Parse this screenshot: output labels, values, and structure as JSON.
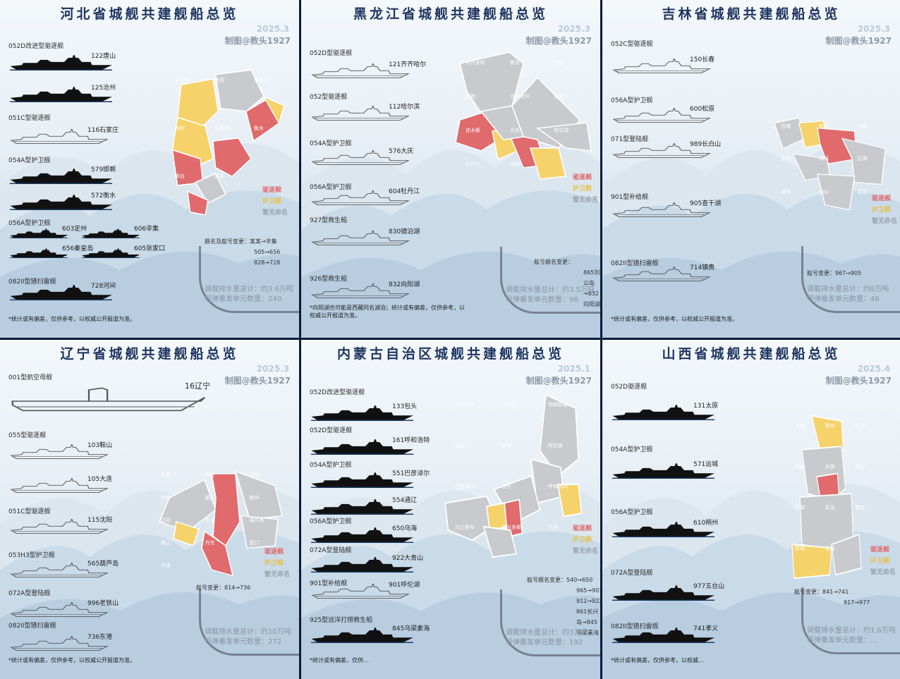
{
  "panels": [
    {
      "title": "河北省城舰共建舰船总览",
      "date": "2025.3",
      "credit": "制图@教头1927",
      "classes": [
        {
          "label": "052D改进型驱逐舰",
          "ships": [
            "122唐山",
            "125沧州"
          ],
          "style": "dark"
        },
        {
          "label": "051C型驱逐舰",
          "ships": [
            "116石家庄"
          ],
          "style": "line"
        },
        {
          "label": "054A型护卫舰",
          "ships": [
            "579邯郸",
            "572衡水"
          ],
          "style": "dark"
        },
        {
          "label": "056A型护卫舰",
          "ships": [
            "603定州",
            "606辛集",
            "656秦皇岛",
            "605张家口"
          ],
          "style": "dark"
        },
        {
          "label": "082II型猎扫雷舰",
          "ships": [
            "728河间"
          ],
          "style": "dark"
        }
      ],
      "map_labels": [
        "张家口",
        "承德",
        "秦皇岛",
        "保定",
        "石家庄",
        "衡水",
        "邢台",
        "邯郸"
      ],
      "legend": [
        "驱逐舰",
        "护卫舰",
        "暂无命名"
      ],
      "notes": [
        "舰名及舷号变更：某某→辛集",
        "505→656",
        "828→728"
      ],
      "totals": [
        "调载排水量总计：约3.6万吨",
        "导弹垂发单元数量：240"
      ],
      "disclaimer": "*统计或有偏差，仅供参考，以权威公开报道为准。"
    },
    {
      "title": "黑龙江省城舰共建舰船总览",
      "date": "2025.3",
      "credit": "制图@教头1927",
      "classes": [
        {
          "label": "052D型驱逐舰",
          "ships": [
            "121齐齐哈尔"
          ],
          "style": "line"
        },
        {
          "label": "052型驱逐舰",
          "ships": [
            "112哈尔滨"
          ],
          "style": "line"
        },
        {
          "label": "054A型护卫舰",
          "ships": [
            "576大庆"
          ],
          "style": "line"
        },
        {
          "label": "056A型护卫舰",
          "ships": [
            "604牡丹江"
          ],
          "style": "line"
        },
        {
          "label": "927型救生船",
          "ships": [
            "830镜泊湖"
          ],
          "style": "line"
        },
        {
          "label": "926型救生船",
          "ships": [
            "832向阳湖"
          ],
          "style": "line"
        }
      ],
      "map_labels": [
        "大兴安岭",
        "黑河",
        "伊春",
        "鹤岗",
        "齐齐哈尔",
        "绥化",
        "佳木斯",
        "大庆",
        "哈尔滨",
        "牡丹江",
        "鸡西"
      ],
      "legend": [
        "驱逐舰",
        "护卫舰",
        "暂无命名"
      ],
      "notes": [
        "舷号舰名变更：",
        "865刘公岛→832向阳湖"
      ],
      "totals": [
        "调载排水量总计：约3.5万吨",
        "导弹垂发单元数量：96"
      ],
      "disclaimer": "*向阳湖也可能是西藏同名湖泊；统计或有偏差，仅供参考，以权威公开报道为准。"
    },
    {
      "title": "吉林省城舰共建舰船总览",
      "date": "2025.3",
      "credit": "制图@教头1927",
      "classes": [
        {
          "label": "052C型驱逐舰",
          "ships": [
            "150长春"
          ],
          "style": "line"
        },
        {
          "label": "056A型护卫舰",
          "ships": [
            "600松原"
          ],
          "style": "line"
        },
        {
          "label": "071型登陆舰",
          "ships": [
            "989长白山"
          ],
          "style": "line"
        },
        {
          "label": "901型补给舰",
          "ships": [
            "905查干湖"
          ],
          "style": "line"
        },
        {
          "label": "082II型猎扫雷舰",
          "ships": [
            "714镇赉"
          ],
          "style": "line"
        }
      ],
      "map_labels": [
        "白城",
        "松原",
        "长春",
        "吉林",
        "四平",
        "辽源",
        "通化",
        "白山",
        "延边"
      ],
      "legend": [
        "驱逐舰",
        "护卫舰",
        "暂无命名"
      ],
      "notes": [
        "舷号变更：967→905"
      ],
      "totals": [
        "调载排水量总计：约8万吨",
        "导弹垂发单元数量：48"
      ],
      "disclaimer": "*统计或有偏差，仅供参考，以权威公开报道为准。"
    },
    {
      "title": "辽宁省城舰共建舰船总览",
      "date": "2025.3",
      "credit": "制图@教头1927",
      "classes": [
        {
          "label": "001型航空母舰",
          "ships": [
            "16辽宁"
          ],
          "style": "carrier"
        },
        {
          "label": "055型驱逐舰",
          "ships": [
            "103鞍山",
            "105大连"
          ],
          "style": "line"
        },
        {
          "label": "051C型驱逐舰",
          "ships": [
            "115沈阳"
          ],
          "style": "line"
        },
        {
          "label": "053H3型护卫舰",
          "ships": [
            "565葫芦岛"
          ],
          "style": "line"
        },
        {
          "label": "072A型登陆舰",
          "ships": [
            "996老铁山"
          ],
          "style": "line"
        },
        {
          "label": "082II型猎扫雷舰",
          "ships": [
            "736东港"
          ],
          "style": "line"
        }
      ],
      "map_labels": [
        "阜新",
        "铁岭",
        "沈阳",
        "抚顺",
        "朝阳",
        "锦州",
        "辽阳",
        "本溪",
        "葫芦岛",
        "鞍山",
        "丹东",
        "营口",
        "大连"
      ],
      "legend": [
        "驱逐舰",
        "护卫舰",
        "暂无命名"
      ],
      "notes": [
        "舷号变更：814→736"
      ],
      "totals": [
        "调载排水量总计：约10万吨",
        "导弹垂发单元数量：272"
      ],
      "disclaimer": "*统计或有偏差，仅供参考，以权威公开报道为准。"
    },
    {
      "title": "内蒙古自治区城舰共建舰船总览",
      "date": "2025.1",
      "credit": "制图@教头1927",
      "classes": [
        {
          "label": "052D改进型驱逐舰",
          "ships": [
            "133包头"
          ],
          "style": "dark"
        },
        {
          "label": "052D型驱逐舰",
          "ships": [
            "161呼和浩特"
          ],
          "style": "dark"
        },
        {
          "label": "054A型护卫舰",
          "ships": [
            "551巴彦淖尔",
            "554通辽"
          ],
          "style": "dark"
        },
        {
          "label": "056A型护卫舰",
          "ships": [
            "650乌海"
          ],
          "style": "dark"
        },
        {
          "label": "072A型登陆舰",
          "ships": [
            "922大青山"
          ],
          "style": "dark"
        },
        {
          "label": "901型补给舰",
          "ships": [
            "901呼伦湖"
          ],
          "style": "line"
        },
        {
          "label": "925型远洋打捞救生船",
          "ships": [
            "845乌梁素海"
          ],
          "style": "dark"
        }
      ],
      "map_labels": [
        "呼伦贝尔",
        "兴安盟",
        "锡林郭勒",
        "通辽",
        "赤峰",
        "阿拉善",
        "巴彦淖尔",
        "包头",
        "呼和浩特",
        "乌兰察布",
        "鄂尔多斯",
        "乌海"
      ],
      "legend": [
        "驱逐舰",
        "护卫舰",
        "暂无命名"
      ],
      "notes": [
        "舷号舰名变更：540→650",
        "965→901",
        "912→922",
        "861长兴岛→845乌梁素海"
      ],
      "totals": [
        "调载排水量总计：约3万吨",
        "导弹垂发单元数量：192"
      ],
      "disclaimer": "*统计或有偏差，仅供..."
    },
    {
      "title": "山西省城舰共建舰船总览",
      "date": "2025.4",
      "credit": "制图@教头1927",
      "classes": [
        {
          "label": "052D驱逐舰",
          "ships": [
            "131太原"
          ],
          "style": "dark"
        },
        {
          "label": "054A型护卫舰",
          "ships": [
            "571运城"
          ],
          "style": "dark"
        },
        {
          "label": "056A型护卫舰",
          "ships": [
            "610朔州"
          ],
          "style": "dark"
        },
        {
          "label": "072A型登陆舰",
          "ships": [
            "977五台山"
          ],
          "style": "dark"
        },
        {
          "label": "082II型猎扫雷舰",
          "ships": [
            "741孝义"
          ],
          "style": "dark"
        }
      ],
      "map_labels": [
        "大同",
        "朔州",
        "忻州",
        "阳泉",
        "太原",
        "晋中",
        "吕梁",
        "长治",
        "临汾",
        "晋城",
        "运城"
      ],
      "legend": [
        "驱逐舰",
        "护卫舰",
        "暂无命名"
      ],
      "notes": [
        "舷号变更：841→741",
        "917→977"
      ],
      "totals": [
        "调载排水量总计：约1.6万吨",
        "导弹垂发单元数量：..."
      ],
      "disclaimer": "*统计或有偏差，仅供参考，以权威..."
    }
  ],
  "colors": {
    "destroyer": "#e06a6c",
    "frigate": "#f5d26a",
    "unnamed": "#c8cacd",
    "title": "#1e3560"
  }
}
